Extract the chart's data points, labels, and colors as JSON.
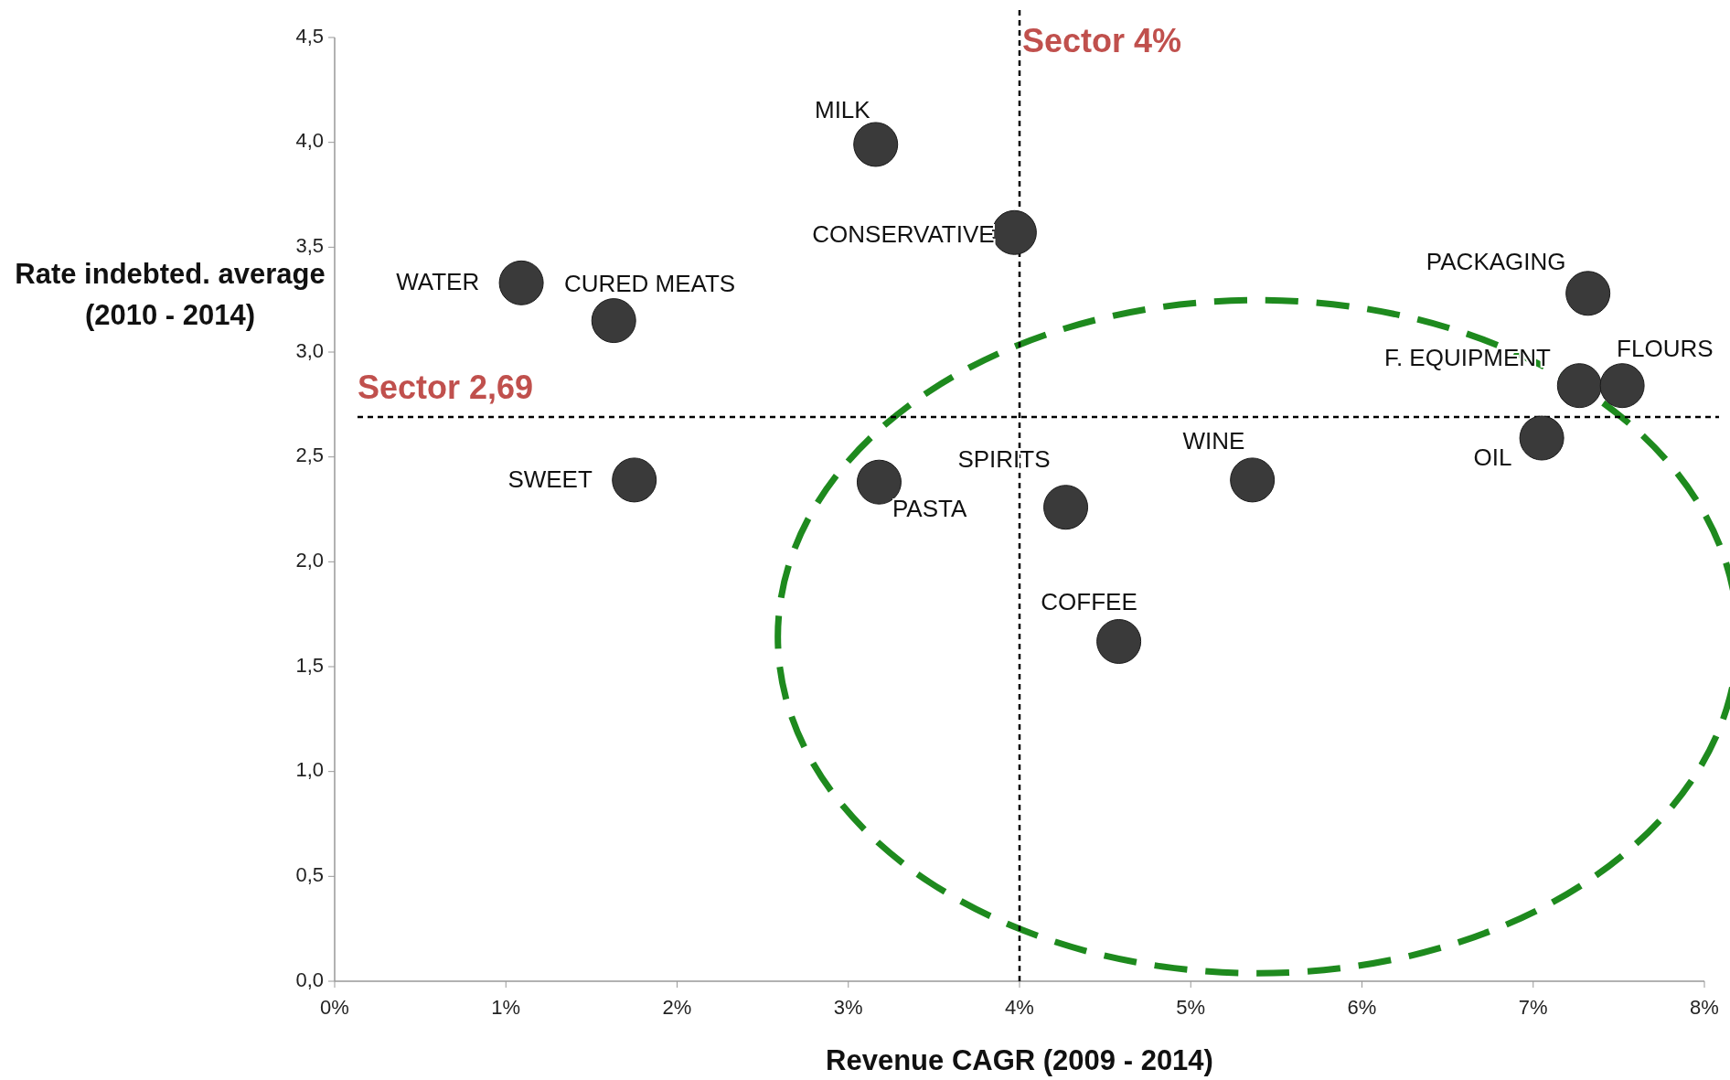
{
  "chart_data": {
    "type": "scatter",
    "xlabel": "Revenue CAGR (2009 - 2014)",
    "ylabel": "Rate indebted. average (2010 - 2014)",
    "xlim": [
      0,
      8
    ],
    "ylim": [
      0,
      4.5
    ],
    "xticks": [
      {
        "value": 0,
        "label": "0%"
      },
      {
        "value": 1,
        "label": "1%"
      },
      {
        "value": 2,
        "label": "2%"
      },
      {
        "value": 3,
        "label": "3%"
      },
      {
        "value": 4,
        "label": "4%"
      },
      {
        "value": 5,
        "label": "5%"
      },
      {
        "value": 6,
        "label": "6%"
      },
      {
        "value": 7,
        "label": "7%"
      },
      {
        "value": 8,
        "label": "8%"
      }
    ],
    "yticks": [
      {
        "value": 0,
        "label": "0,0"
      },
      {
        "value": 0.5,
        "label": "0,5"
      },
      {
        "value": 1,
        "label": "1,0"
      },
      {
        "value": 1.5,
        "label": "1,5"
      },
      {
        "value": 2,
        "label": "2,0"
      },
      {
        "value": 2.5,
        "label": "2,5"
      },
      {
        "value": 3,
        "label": "3,0"
      },
      {
        "value": 3.5,
        "label": "3,5"
      },
      {
        "value": 4,
        "label": "4,0"
      },
      {
        "value": 4.5,
        "label": "4,5"
      }
    ],
    "grid": false,
    "marker": "circle",
    "series": [
      {
        "color": "#3a3a3a",
        "x": [
          3.16,
          3.97,
          1.09,
          1.63,
          7.32,
          7.27,
          7.52,
          7.05,
          1.75,
          3.18,
          4.27,
          5.36,
          4.58
        ],
        "values": [
          3.99,
          3.57,
          3.33,
          3.15,
          3.28,
          2.84,
          2.84,
          2.59,
          2.39,
          2.38,
          2.26,
          2.39,
          1.62
        ]
      }
    ],
    "annotations": [
      {
        "text": "MILK",
        "x": 3.16,
        "y": 3.99
      },
      {
        "text": "CONSERVATIVE",
        "x": 3.97,
        "y": 3.57
      },
      {
        "text": "WATER",
        "x": 1.09,
        "y": 3.33
      },
      {
        "text": "CURED MEATS",
        "x": 1.63,
        "y": 3.15
      },
      {
        "text": "PACKAGING",
        "x": 7.32,
        "y": 3.28
      },
      {
        "text": "F. EQUIPMENT",
        "x": 7.27,
        "y": 2.84
      },
      {
        "text": "FLOURS",
        "x": 7.52,
        "y": 2.84
      },
      {
        "text": "OIL",
        "x": 7.05,
        "y": 2.59
      },
      {
        "text": "SWEET",
        "x": 1.75,
        "y": 2.39
      },
      {
        "text": "PASTA",
        "x": 3.18,
        "y": 2.38
      },
      {
        "text": "SPIRITS",
        "x": 4.27,
        "y": 2.26
      },
      {
        "text": "WINE",
        "x": 5.36,
        "y": 2.39
      },
      {
        "text": "COFFEE",
        "x": 4.58,
        "y": 1.62
      }
    ],
    "ref_lines": [
      {
        "axis": "x",
        "value": 4,
        "label": "Sector 4%",
        "color": "#000000",
        "line_style": "dashed"
      },
      {
        "axis": "y",
        "value": 2.69,
        "label": "Sector 2,69",
        "color": "#000000",
        "line_style": "dashed"
      }
    ]
  }
}
